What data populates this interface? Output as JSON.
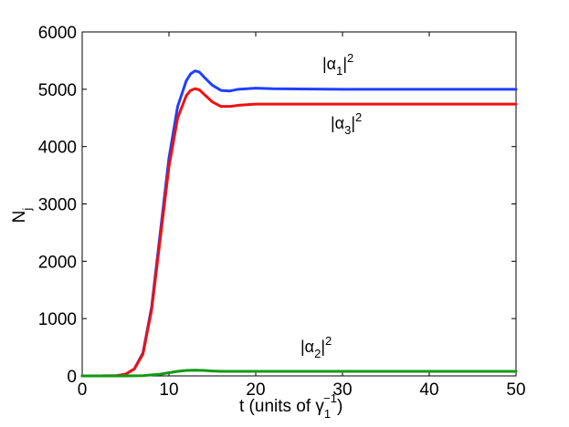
{
  "chart_data": {
    "type": "line",
    "xlabel": {
      "prefix": "t (units of ",
      "symbol": "γ",
      "subscript": "1",
      "superscript": "−1",
      "suffix": ")"
    },
    "ylabel": {
      "main": "N",
      "subscript": "j"
    },
    "xlim": [
      0,
      50
    ],
    "ylim": [
      0,
      6000
    ],
    "xticks": [
      0,
      10,
      20,
      30,
      40,
      50
    ],
    "yticks": [
      0,
      1000,
      2000,
      3000,
      4000,
      5000,
      6000
    ],
    "grid": false,
    "legend": "none",
    "series": [
      {
        "color": "#1f3fff",
        "x": [
          0,
          2,
          4,
          5,
          6,
          7,
          8,
          9,
          10,
          11,
          12,
          12.5,
          13,
          13.5,
          14,
          15,
          16,
          17,
          18,
          20,
          22,
          25,
          30,
          35,
          40,
          45,
          50
        ],
        "y": [
          0,
          0,
          5,
          30,
          120,
          400,
          1200,
          2500,
          3800,
          4700,
          5150,
          5270,
          5320,
          5300,
          5220,
          5070,
          4980,
          4970,
          5000,
          5020,
          5010,
          5005,
          5000,
          5000,
          5000,
          5000,
          5000
        ]
      },
      {
        "color": "#ee1111",
        "x": [
          0,
          2,
          4,
          5,
          6,
          7,
          8,
          9,
          10,
          11,
          12,
          12.5,
          13,
          13.5,
          14,
          15,
          16,
          17,
          18,
          20,
          22,
          25,
          30,
          35,
          40,
          45,
          50
        ],
        "y": [
          0,
          0,
          5,
          30,
          120,
          380,
          1150,
          2400,
          3650,
          4500,
          4890,
          4980,
          5010,
          4990,
          4920,
          4780,
          4700,
          4700,
          4720,
          4740,
          4740,
          4740,
          4740,
          4740,
          4740,
          4740,
          4740
        ]
      },
      {
        "color": "#119911",
        "x": [
          0,
          5,
          7,
          9,
          10,
          11,
          12,
          13,
          14,
          15,
          16,
          18,
          20,
          25,
          30,
          40,
          50
        ],
        "y": [
          0,
          0,
          5,
          30,
          55,
          80,
          95,
          100,
          95,
          85,
          80,
          80,
          80,
          80,
          80,
          80,
          80
        ]
      }
    ],
    "annotations": [
      {
        "base": "|α",
        "sub": "1",
        "tail": "|",
        "sup": "2",
        "color": "#1f3fff"
      },
      {
        "base": "|α",
        "sub": "3",
        "tail": "|",
        "sup": "2",
        "color": "#ee1111"
      },
      {
        "base": "|α",
        "sub": "2",
        "tail": "|",
        "sup": "2",
        "color": "#119911"
      }
    ]
  }
}
